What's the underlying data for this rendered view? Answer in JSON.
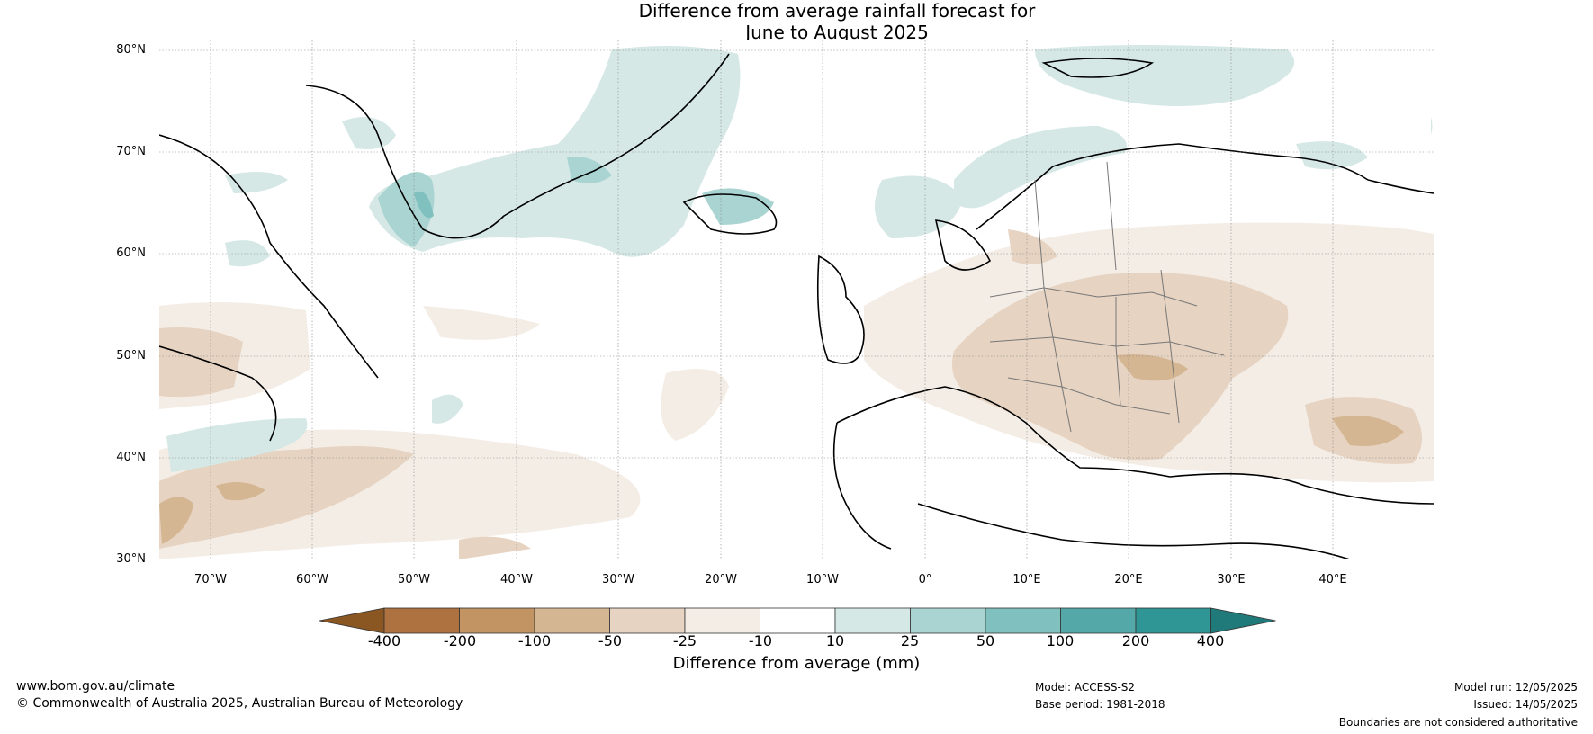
{
  "title_line1": "Difference from average rainfall forecast for",
  "title_line2": "June to August 2025",
  "latitudes": [
    "80°N",
    "70°N",
    "60°N",
    "50°N",
    "40°N",
    "30°N"
  ],
  "longitudes": [
    "70°W",
    "60°W",
    "50°W",
    "40°W",
    "30°W",
    "20°W",
    "10°W",
    "0°",
    "10°E",
    "20°E",
    "30°E",
    "40°E"
  ],
  "colorbar": {
    "title": "Difference from average (mm)",
    "labels": [
      "-400",
      "-200",
      "-100",
      "-50",
      "-25",
      "-10",
      "10",
      "25",
      "50",
      "100",
      "200",
      "400"
    ],
    "colors": [
      "#8a5621",
      "#ad7240",
      "#c29464",
      "#d5b693",
      "#e6d3c1",
      "#f4ede6",
      "#ffffff",
      "#d5e8e6",
      "#a9d4d2",
      "#80c0be",
      "#54a9a8",
      "#2f9595",
      "#217a7a"
    ]
  },
  "footer": {
    "website": "www.bom.gov.au/climate",
    "copyright": "© Commonwealth of Australia 2025, Australian Bureau of Meteorology",
    "model": "Model: ACCESS-S2",
    "base_period": "Base period: 1981-2018",
    "model_run": "Model run: 12/05/2025",
    "issued": "Issued: 14/05/2025",
    "disclaimer": "Boundaries are not considered authoritative"
  }
}
